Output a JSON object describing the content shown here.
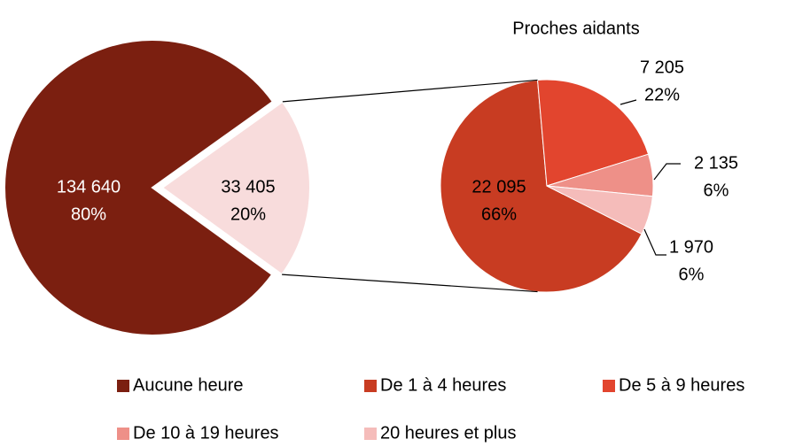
{
  "chart_data": {
    "type": "pie-of-pie",
    "main": {
      "categories": [
        "Aucune heure",
        "Proches aidants"
      ],
      "values": [
        134640,
        33405
      ],
      "value_labels": [
        "134 640",
        "33 405"
      ],
      "percents": [
        80,
        20
      ],
      "percent_labels": [
        "80%",
        "20%"
      ],
      "colors": [
        "#7b1f10",
        "#f8dcdc"
      ]
    },
    "sub": {
      "title": "Proches aidants",
      "categories": [
        "De 1 à 4 heures",
        "De 5 à 9 heures",
        "De 10 à 19 heures",
        "20 heures et plus"
      ],
      "values": [
        22095,
        7205,
        2135,
        1970
      ],
      "value_labels": [
        "22 095",
        "7 205",
        "2 135",
        "1 970"
      ],
      "percents": [
        66,
        22,
        6,
        6
      ],
      "percent_labels": [
        "66%",
        "22%",
        "6%",
        "6%"
      ],
      "colors": [
        "#c83c22",
        "#e2452e",
        "#ee9088",
        "#f5bcba"
      ]
    }
  }
}
